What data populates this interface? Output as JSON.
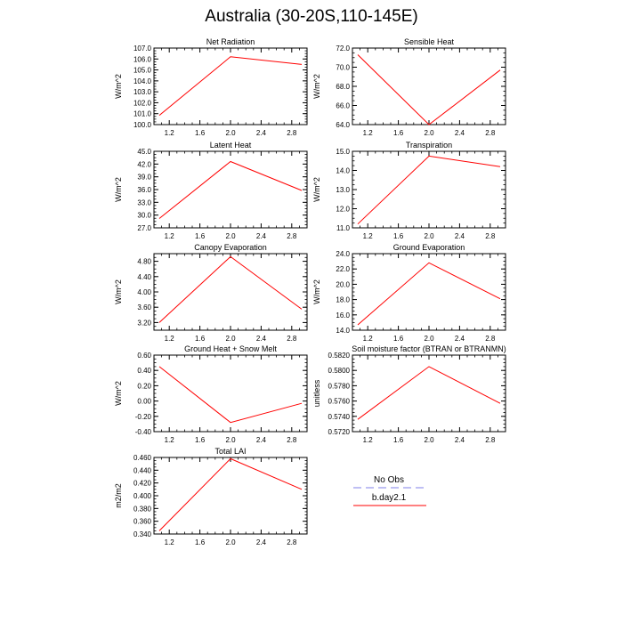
{
  "title": "Australia (30-20S,110-145E)",
  "colors": {
    "model_line": "#ff0000",
    "obs_line": "#9999ee",
    "axis": "#000000"
  },
  "legend": {
    "obs_label": "No Obs",
    "model_label": "b.day2.1"
  },
  "chart_data": [
    {
      "type": "line",
      "title": "Net Radiation",
      "ylabel": "W/m^2",
      "x": [
        1.07,
        2.0,
        2.93
      ],
      "series": [
        {
          "name": "b.day2.1",
          "values": [
            100.85,
            106.2,
            105.5
          ]
        }
      ],
      "xlim": [
        1.0,
        3.0
      ],
      "ylim": [
        100.0,
        107.0
      ],
      "xticks": [
        "1.2",
        "1.6",
        "2.0",
        "2.4",
        "2.8"
      ],
      "yticks": [
        "100.0",
        "101.0",
        "102.0",
        "103.0",
        "104.0",
        "105.0",
        "106.0",
        "107.0"
      ]
    },
    {
      "type": "line",
      "title": "Sensible Heat",
      "ylabel": "W/m^2",
      "x": [
        1.07,
        2.0,
        2.93
      ],
      "series": [
        {
          "name": "b.day2.1",
          "values": [
            71.3,
            64.0,
            69.7
          ]
        }
      ],
      "xlim": [
        1.0,
        3.0
      ],
      "ylim": [
        64.0,
        72.0
      ],
      "xticks": [
        "1.2",
        "1.6",
        "2.0",
        "2.4",
        "2.8"
      ],
      "yticks": [
        "64.0",
        "66.0",
        "68.0",
        "70.0",
        "72.0"
      ]
    },
    {
      "type": "line",
      "title": "Latent Heat",
      "ylabel": "W/m^2",
      "x": [
        1.07,
        2.0,
        2.93
      ],
      "series": [
        {
          "name": "b.day2.1",
          "values": [
            29.2,
            42.6,
            35.8
          ]
        }
      ],
      "xlim": [
        1.0,
        3.0
      ],
      "ylim": [
        27.0,
        45.0
      ],
      "xticks": [
        "1.2",
        "1.6",
        "2.0",
        "2.4",
        "2.8"
      ],
      "yticks": [
        "27.0",
        "30.0",
        "33.0",
        "36.0",
        "39.0",
        "42.0",
        "45.0"
      ]
    },
    {
      "type": "line",
      "title": "Transpiration",
      "ylabel": "W/m^2",
      "x": [
        1.07,
        2.0,
        2.93
      ],
      "series": [
        {
          "name": "b.day2.1",
          "values": [
            11.2,
            14.75,
            14.2
          ]
        }
      ],
      "xlim": [
        1.0,
        3.0
      ],
      "ylim": [
        11.0,
        15.0
      ],
      "xticks": [
        "1.2",
        "1.6",
        "2.0",
        "2.4",
        "2.8"
      ],
      "yticks": [
        "11.0",
        "12.0",
        "13.0",
        "14.0",
        "15.0"
      ]
    },
    {
      "type": "line",
      "title": "Canopy Evaporation",
      "ylabel": "W/m^2",
      "x": [
        1.07,
        2.0,
        2.93
      ],
      "series": [
        {
          "name": "b.day2.1",
          "values": [
            3.2,
            4.92,
            3.55
          ]
        }
      ],
      "xlim": [
        1.0,
        3.0
      ],
      "ylim": [
        3.0,
        5.0
      ],
      "xticks": [
        "1.2",
        "1.6",
        "2.0",
        "2.4",
        "2.8"
      ],
      "yticks": [
        "3.20",
        "3.60",
        "4.00",
        "4.40",
        "4.80"
      ]
    },
    {
      "type": "line",
      "title": "Ground Evaporation",
      "ylabel": "W/m^2",
      "x": [
        1.07,
        2.0,
        2.93
      ],
      "series": [
        {
          "name": "b.day2.1",
          "values": [
            14.7,
            22.8,
            18.1
          ]
        }
      ],
      "xlim": [
        1.0,
        3.0
      ],
      "ylim": [
        14.0,
        24.0
      ],
      "xticks": [
        "1.2",
        "1.6",
        "2.0",
        "2.4",
        "2.8"
      ],
      "yticks": [
        "14.0",
        "16.0",
        "18.0",
        "20.0",
        "22.0",
        "24.0"
      ]
    },
    {
      "type": "line",
      "title": "Ground Heat + Snow Melt",
      "ylabel": "W/m^2",
      "x": [
        1.07,
        2.0,
        2.93
      ],
      "series": [
        {
          "name": "b.day2.1",
          "values": [
            0.45,
            -0.28,
            -0.03
          ]
        }
      ],
      "xlim": [
        1.0,
        3.0
      ],
      "ylim": [
        -0.4,
        0.6
      ],
      "xticks": [
        "1.2",
        "1.6",
        "2.0",
        "2.4",
        "2.8"
      ],
      "yticks": [
        "-0.40",
        "-0.20",
        "0.00",
        "0.20",
        "0.40",
        "0.60"
      ]
    },
    {
      "type": "line",
      "title": "Soil moisture factor (BTRAN or BTRANMN)",
      "ylabel": "unitless",
      "x": [
        1.07,
        2.0,
        2.93
      ],
      "series": [
        {
          "name": "b.day2.1",
          "values": [
            0.5736,
            0.5805,
            0.5757
          ]
        }
      ],
      "xlim": [
        1.0,
        3.0
      ],
      "ylim": [
        0.572,
        0.582
      ],
      "xticks": [
        "1.2",
        "1.6",
        "2.0",
        "2.4",
        "2.8"
      ],
      "yticks": [
        "0.5720",
        "0.5740",
        "0.5760",
        "0.5780",
        "0.5800",
        "0.5820"
      ]
    },
    {
      "type": "line",
      "title": "Total LAI",
      "ylabel": "m2/m2",
      "x": [
        1.07,
        2.0,
        2.93
      ],
      "series": [
        {
          "name": "b.day2.1",
          "values": [
            0.345,
            0.458,
            0.41
          ]
        }
      ],
      "xlim": [
        1.0,
        3.0
      ],
      "ylim": [
        0.34,
        0.46
      ],
      "xticks": [
        "1.2",
        "1.6",
        "2.0",
        "2.4",
        "2.8"
      ],
      "yticks": [
        "0.340",
        "0.360",
        "0.380",
        "0.400",
        "0.420",
        "0.440",
        "0.460"
      ]
    }
  ]
}
